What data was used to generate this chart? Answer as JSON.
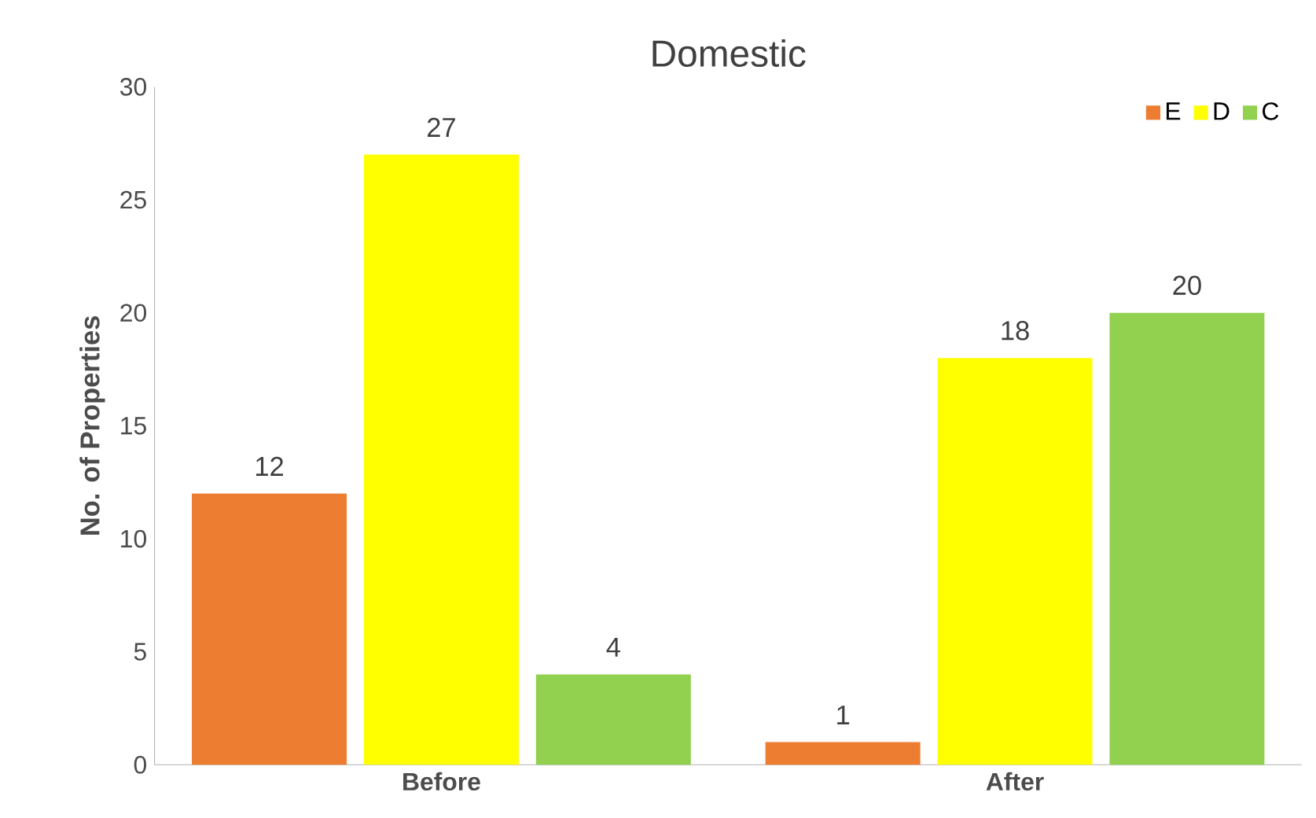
{
  "chart_data": {
    "type": "bar",
    "title": "Domestic",
    "ylabel": "No. of Properties",
    "categories": [
      "Before",
      "After"
    ],
    "series": [
      {
        "name": "E",
        "color": "#ed7d31",
        "values": [
          12,
          1
        ]
      },
      {
        "name": "D",
        "color": "#ffff00",
        "values": [
          27,
          18
        ]
      },
      {
        "name": "C",
        "color": "#92d050",
        "values": [
          4,
          20
        ]
      }
    ],
    "ylim": [
      0,
      30
    ],
    "yticks": [
      0,
      5,
      10,
      15,
      20,
      25,
      30
    ],
    "data_labels": true,
    "legend": "top right",
    "grid": false
  }
}
